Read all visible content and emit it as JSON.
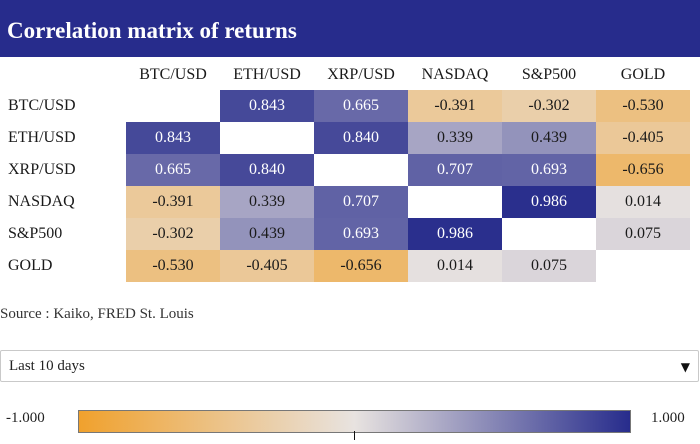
{
  "title": "Correlation matrix of returns",
  "source": "Source : Kaiko, FRED St. Louis",
  "period_select": {
    "value": "Last 10 days",
    "caret": "▼"
  },
  "legend": {
    "min_label": "-1.000",
    "max_label": "1.000",
    "min_color": "#f0a12d",
    "mid_color": "#e8e3e0",
    "max_color": "#272c8c"
  },
  "colors": {
    "title_bar": "#272c8c",
    "diagonal": "#ffffff"
  },
  "chart_data": {
    "type": "heatmap",
    "labels": [
      "BTC/USD",
      "ETH/USD",
      "XRP/USD",
      "NASDAQ",
      "S&P500",
      "GOLD"
    ],
    "values": [
      [
        null,
        0.843,
        0.665,
        -0.391,
        -0.302,
        -0.53
      ],
      [
        0.843,
        null,
        0.84,
        0.339,
        0.439,
        -0.405
      ],
      [
        0.665,
        0.84,
        null,
        0.707,
        0.693,
        -0.656
      ],
      [
        -0.391,
        0.339,
        0.707,
        null,
        0.986,
        0.014
      ],
      [
        -0.302,
        0.439,
        0.693,
        0.986,
        null,
        0.075
      ],
      [
        -0.53,
        -0.405,
        -0.656,
        0.014,
        0.075,
        null
      ]
    ],
    "value_labels": [
      [
        "",
        "0.843",
        "0.665",
        "-0.391",
        "-0.302",
        "-0.530"
      ],
      [
        "0.843",
        "",
        "0.840",
        "0.339",
        "0.439",
        "-0.405"
      ],
      [
        "0.665",
        "0.840",
        "",
        "0.707",
        "0.693",
        "-0.656"
      ],
      [
        "-0.391",
        "0.339",
        "0.707",
        "",
        "0.986",
        "0.014"
      ],
      [
        "-0.302",
        "0.439",
        "0.693",
        "0.986",
        "",
        "0.075"
      ],
      [
        "-0.530",
        "-0.405",
        "-0.656",
        "0.014",
        "0.075",
        ""
      ]
    ],
    "color_range": [
      -1,
      1
    ]
  }
}
